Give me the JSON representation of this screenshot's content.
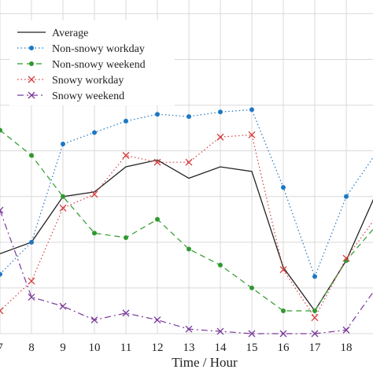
{
  "chart_data": {
    "type": "line",
    "x": [
      7,
      8,
      9,
      10,
      11,
      12,
      13,
      14,
      15,
      16,
      17,
      18,
      19
    ],
    "x_tick_labels": [
      "7",
      "8",
      "9",
      "10",
      "11",
      "12",
      "13",
      "14",
      "15",
      "16",
      "17",
      "18"
    ],
    "xlabel": "Time / Hour",
    "ylabel": "",
    "xlim": [
      7,
      18.85
    ],
    "ylim": [
      0,
      7.3
    ],
    "grid": true,
    "legend_position": "top-left",
    "series": [
      {
        "name": "Average",
        "color": "#222222",
        "dash": "solid",
        "marker": "none",
        "values": [
          1.75,
          2.0,
          3.0,
          3.1,
          3.65,
          3.8,
          3.4,
          3.65,
          3.55,
          1.45,
          0.5,
          1.6,
          3.15
        ]
      },
      {
        "name": "Non-snowy workday",
        "color": "#1f77c4",
        "dash": "dotted",
        "marker": "dot",
        "values": [
          1.3,
          2.0,
          4.15,
          4.4,
          4.65,
          4.8,
          4.75,
          4.85,
          4.9,
          3.2,
          1.25,
          3.0,
          4.0
        ]
      },
      {
        "name": "Non-snowy weekend",
        "color": "#2e9a2e",
        "dash": "dashed",
        "marker": "dot",
        "values": [
          4.45,
          3.9,
          3.0,
          2.2,
          2.1,
          2.5,
          1.85,
          1.5,
          1.0,
          0.5,
          0.5,
          1.6,
          2.4
        ]
      },
      {
        "name": "Snowy workday",
        "color": "#d63c3c",
        "dash": "dotted",
        "marker": "x",
        "values": [
          0.5,
          1.15,
          2.75,
          3.05,
          3.9,
          3.75,
          3.75,
          4.3,
          4.35,
          1.4,
          0.35,
          1.65,
          2.6
        ]
      },
      {
        "name": "Snowy weekend",
        "color": "#7b3a9a",
        "dash": "dashdot",
        "marker": "x",
        "values": [
          2.7,
          0.8,
          0.6,
          0.3,
          0.45,
          0.3,
          0.1,
          0.05,
          0.0,
          0.0,
          0.0,
          0.08,
          1.05
        ]
      }
    ]
  }
}
